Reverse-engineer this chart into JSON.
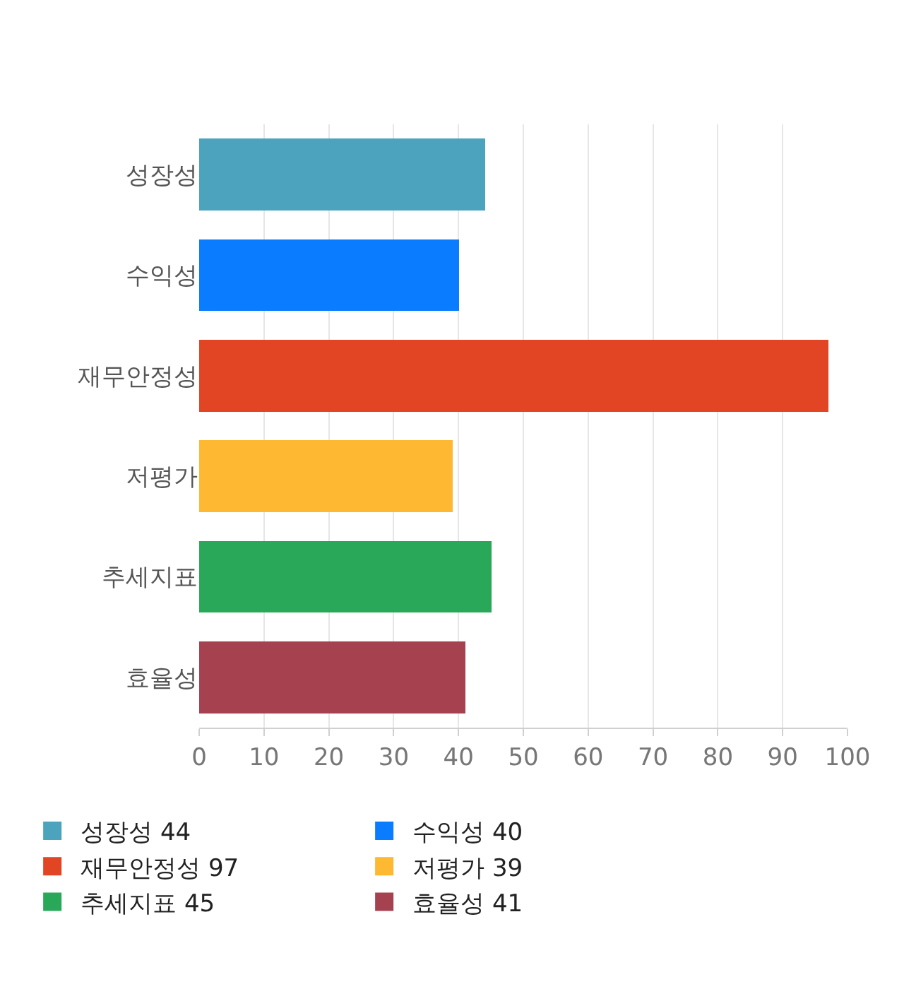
{
  "chart_data": {
    "type": "bar",
    "orientation": "horizontal",
    "stacked": true,
    "categories": [
      "성장성",
      "수익성",
      "재무안정성",
      "저평가",
      "추세지표",
      "효율성"
    ],
    "series": [
      {
        "name": "성장성 44",
        "color": "#4ba3bd",
        "values": [
          44,
          null,
          null,
          null,
          null,
          null
        ]
      },
      {
        "name": "수익성 40",
        "color": "#0a7cff",
        "values": [
          null,
          40,
          null,
          null,
          null,
          null
        ]
      },
      {
        "name": "재무안정성 97",
        "color": "#e24524",
        "values": [
          null,
          null,
          97,
          null,
          null,
          null
        ]
      },
      {
        "name": "저평가 39",
        "color": "#feb832",
        "values": [
          null,
          null,
          null,
          39,
          null,
          null
        ]
      },
      {
        "name": "추세지표 45",
        "color": "#2aa85a",
        "values": [
          null,
          null,
          null,
          null,
          45,
          null
        ]
      },
      {
        "name": "효율성 41",
        "color": "#a64150",
        "values": [
          null,
          null,
          null,
          null,
          null,
          41
        ]
      }
    ],
    "xlim": [
      0,
      100
    ],
    "xticks": [
      0,
      10,
      20,
      30,
      40,
      50,
      60,
      70,
      80,
      90,
      100
    ],
    "grid": "x",
    "legend": "bottom"
  }
}
